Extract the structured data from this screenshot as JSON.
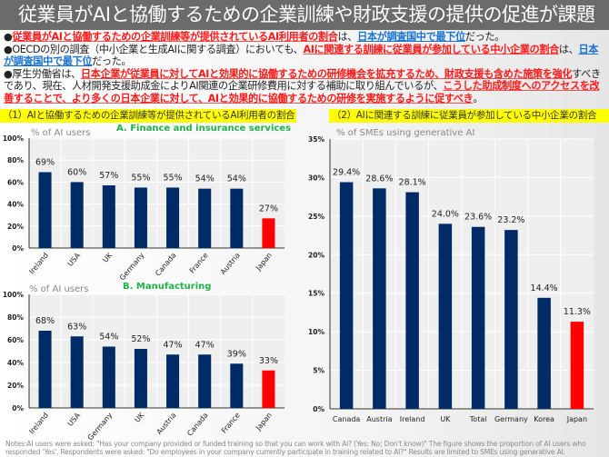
{
  "title": "従業員がAIと協働するための企業訓練や財政支援の提供の促進が課題",
  "bullets": [
    [
      {
        "t": "従業員がAIと協働するための企業訓練等が提供されているAI利用者の割合",
        "s": "red"
      },
      {
        "t": "は、",
        "s": "normal"
      },
      {
        "t": "日本が調査国中で最下位",
        "s": "blue"
      },
      {
        "t": "だった。",
        "s": "normal"
      }
    ],
    [
      {
        "t": "OECDの別の調査（中小企業と生成AIに関する調査）においても、",
        "s": "normal"
      },
      {
        "t": "AIに関連する訓練に従業員が参加している中小企業の割合",
        "s": "red"
      },
      {
        "t": "は、",
        "s": "normal"
      },
      {
        "t": "日本が調査国中で最下位",
        "s": "blue"
      },
      {
        "t": "だった。",
        "s": "normal"
      }
    ],
    [
      {
        "t": "厚生労働省は、",
        "s": "normal"
      },
      {
        "t": "日本企業が従業員に対してAIと効果的に協働するための研修機会を拡充するため、財政支援も含めた施策を強化",
        "s": "red"
      },
      {
        "t": "すべきであり、現在、人材開発支援助成金によりAI関連の企業研修費用に対する補助に取り組んでいるが、",
        "s": "normal"
      },
      {
        "t": "こうした助成制度へのアクセスを改善することで、より多くの日本企業に対して、AIと効果的に協働するための研修を実施するように促すべき",
        "s": "red"
      },
      {
        "t": "。",
        "s": "normal"
      }
    ]
  ],
  "sections": {
    "left": "（1）AIと協働するための企業訓練等が提供されているAI利用者の割合",
    "right": "（2）AIに関連する訓練に従業員が参加している中小企業の割合"
  },
  "colors": {
    "bar": "#002b66",
    "highlight": "#ff0000",
    "plot_bg": "#efefef",
    "grid": "#ffffff"
  },
  "chart_data": [
    {
      "type": "bar",
      "id": "finance",
      "subtitle": "A. Finance and insurance services",
      "ylabel": "% of AI users",
      "categories": [
        "Ireland",
        "USA",
        "UK",
        "Germany",
        "Canada",
        "France",
        "Austria",
        "Japan"
      ],
      "values": [
        69,
        60,
        57,
        55,
        55,
        54,
        54,
        27
      ],
      "data_labels": [
        "69%",
        "60%",
        "57%",
        "55%",
        "55%",
        "54%",
        "54%",
        "27%"
      ],
      "highlight": "Japan",
      "ylim": [
        0,
        100
      ],
      "yticks": [
        "0%",
        "20%",
        "40%",
        "60%",
        "80%",
        "100%"
      ],
      "grid": true,
      "label_rotation": "diagonal"
    },
    {
      "type": "bar",
      "id": "manufacturing",
      "subtitle": "B. Manufacturing",
      "ylabel": "% of AI users",
      "categories": [
        "Ireland",
        "USA",
        "Germany",
        "UK",
        "Austria",
        "Canada",
        "France",
        "Japan"
      ],
      "values": [
        68,
        63,
        54,
        52,
        47,
        47,
        39,
        33
      ],
      "data_labels": [
        "68%",
        "63%",
        "54%",
        "52%",
        "47%",
        "47%",
        "39%",
        "33%"
      ],
      "highlight": "Japan",
      "ylim": [
        0,
        100
      ],
      "yticks": [
        "0%",
        "20%",
        "40%",
        "60%",
        "80%",
        "100%"
      ],
      "grid": true,
      "label_rotation": "diagonal"
    },
    {
      "type": "bar",
      "id": "smes",
      "subtitle": "",
      "ylabel": "% of SMEs using generative AI",
      "categories": [
        "Canada",
        "Austria",
        "Ireland",
        "UK",
        "Total",
        "Germany",
        "Korea",
        "Japan"
      ],
      "values": [
        29.4,
        28.6,
        28.1,
        24.0,
        23.6,
        23.2,
        14.4,
        11.3
      ],
      "data_labels": [
        "29.4%",
        "28.6%",
        "28.1%",
        "24.0%",
        "23.6%",
        "23.2%",
        "14.4%",
        "11.3%"
      ],
      "highlight": "Japan",
      "ylim": [
        0,
        35
      ],
      "yticks": [
        "0%",
        "5%",
        "10%",
        "15%",
        "20%",
        "25%",
        "30%",
        "35%"
      ],
      "grid": true,
      "label_rotation": "horizontal"
    }
  ],
  "notes": "Notes:AI users were asked: \"Has your company provided or funded training so that you can work with AI? (Yes; No; Don't know)\" The figure shows the proportion of AI users who responded 'Yes'. Respondents were asked: \"Do employees in your company currently participate in training related to AI?\" Results are limited to SMEs using generative AI."
}
